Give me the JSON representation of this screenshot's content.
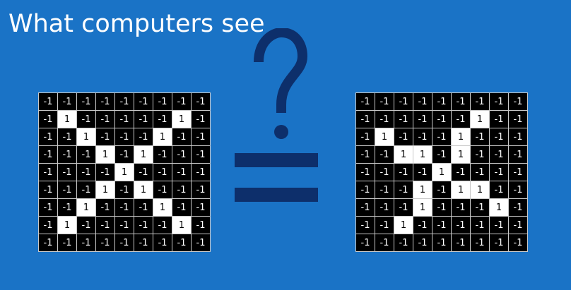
{
  "title": "What computers see",
  "question_glyph": "?",
  "grids": [
    {
      "name": "left",
      "rows": [
        [
          "-1",
          "-1",
          "-1",
          "-1",
          "-1",
          "-1",
          "-1",
          "-1",
          "-1"
        ],
        [
          "-1",
          "1",
          "-1",
          "-1",
          "-1",
          "-1",
          "-1",
          "1",
          "-1"
        ],
        [
          "-1",
          "-1",
          "1",
          "-1",
          "-1",
          "-1",
          "1",
          "-1",
          "-1"
        ],
        [
          "-1",
          "-1",
          "-1",
          "1",
          "-1",
          "1",
          "-1",
          "-1",
          "-1"
        ],
        [
          "-1",
          "-1",
          "-1",
          "-1",
          "1",
          "-1",
          "-1",
          "-1",
          "-1"
        ],
        [
          "-1",
          "-1",
          "-1",
          "1",
          "-1",
          "1",
          "-1",
          "-1",
          "-1"
        ],
        [
          "-1",
          "-1",
          "1",
          "-1",
          "-1",
          "-1",
          "1",
          "-1",
          "-1"
        ],
        [
          "-1",
          "1",
          "-1",
          "-1",
          "-1",
          "-1",
          "-1",
          "1",
          "-1"
        ],
        [
          "-1",
          "-1",
          "-1",
          "-1",
          "-1",
          "-1",
          "-1",
          "-1",
          "-1"
        ]
      ]
    },
    {
      "name": "right",
      "rows": [
        [
          "-1",
          "-1",
          "-1",
          "-1",
          "-1",
          "-1",
          "-1",
          "-1",
          "-1"
        ],
        [
          "-1",
          "-1",
          "-1",
          "-1",
          "-1",
          "-1",
          "1",
          "-1",
          "-1"
        ],
        [
          "-1",
          "1",
          "-1",
          "-1",
          "-1",
          "1",
          "-1",
          "-1",
          "-1"
        ],
        [
          "-1",
          "-1",
          "1",
          "1",
          "-1",
          "1",
          "-1",
          "-1",
          "-1"
        ],
        [
          "-1",
          "-1",
          "-1",
          "-1",
          "1",
          "-1",
          "-1",
          "-1",
          "-1"
        ],
        [
          "-1",
          "-1",
          "-1",
          "1",
          "-1",
          "1",
          "1",
          "-1",
          "-1"
        ],
        [
          "-1",
          "-1",
          "-1",
          "1",
          "-1",
          "-1",
          "-1",
          "1",
          "-1"
        ],
        [
          "-1",
          "-1",
          "1",
          "-1",
          "-1",
          "-1",
          "-1",
          "-1",
          "-1"
        ],
        [
          "-1",
          "-1",
          "-1",
          "-1",
          "-1",
          "-1",
          "-1",
          "-1",
          "-1"
        ]
      ]
    }
  ],
  "colors": {
    "background": "#1a73c6",
    "symbol": "#0d2f6b",
    "cell_off": "#000000",
    "cell_on": "#ffffff"
  }
}
